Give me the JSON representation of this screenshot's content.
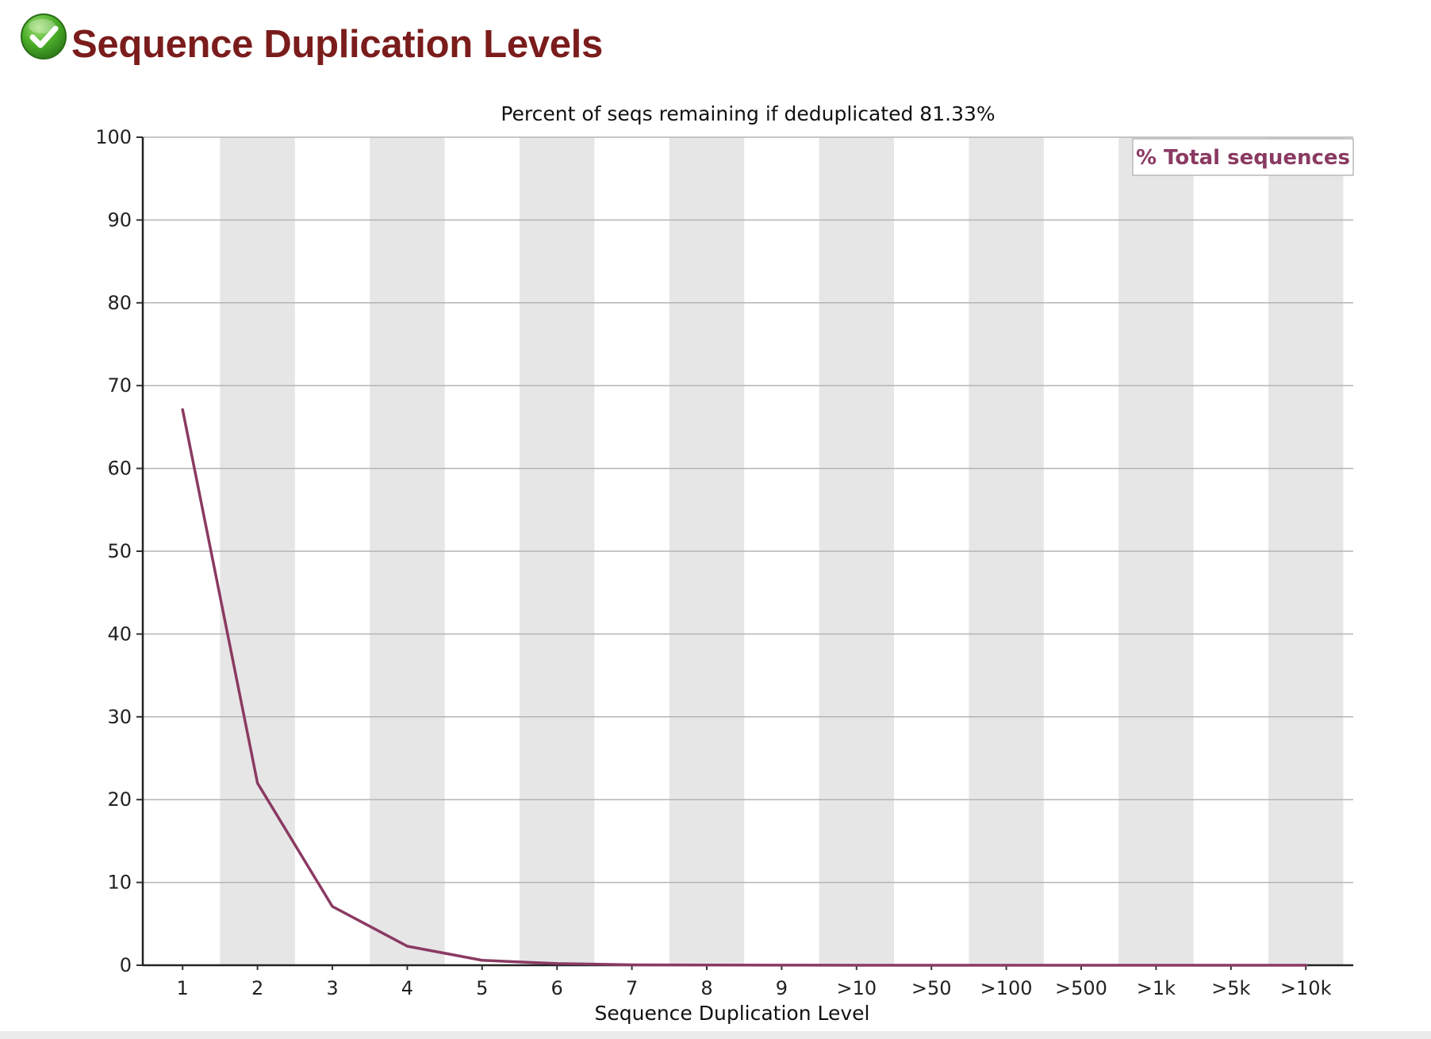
{
  "header": {
    "title": "Sequence Duplication Levels",
    "status_icon": "check-circle-icon",
    "status_color": "#4caf2a"
  },
  "colors": {
    "title": "#7b1c1c",
    "line": "#8a3a62",
    "band": "#e6e6e6",
    "grid": "#b4b4b4"
  },
  "chart_data": {
    "type": "line",
    "title": "Percent of seqs remaining if deduplicated 81.33%",
    "xlabel": "Sequence Duplication Level",
    "ylabel": "",
    "categories": [
      "1",
      "2",
      "3",
      "4",
      "5",
      "6",
      "7",
      "8",
      "9",
      ">10",
      ">50",
      ">100",
      ">500",
      ">1k",
      ">5k",
      ">10k"
    ],
    "series": [
      {
        "name": "% Total sequences",
        "values": [
          67.1,
          22.0,
          7.1,
          2.3,
          0.6,
          0.2,
          0.05,
          0.02,
          0.01,
          0.0,
          0.0,
          0.0,
          0.0,
          0.0,
          0.0,
          0.0
        ]
      }
    ],
    "ylim": [
      0,
      100
    ],
    "yticks": [
      0,
      10,
      20,
      30,
      40,
      50,
      60,
      70,
      80,
      90,
      100
    ],
    "grid": true,
    "alternating_bands": true,
    "legend_position": "top-right"
  }
}
